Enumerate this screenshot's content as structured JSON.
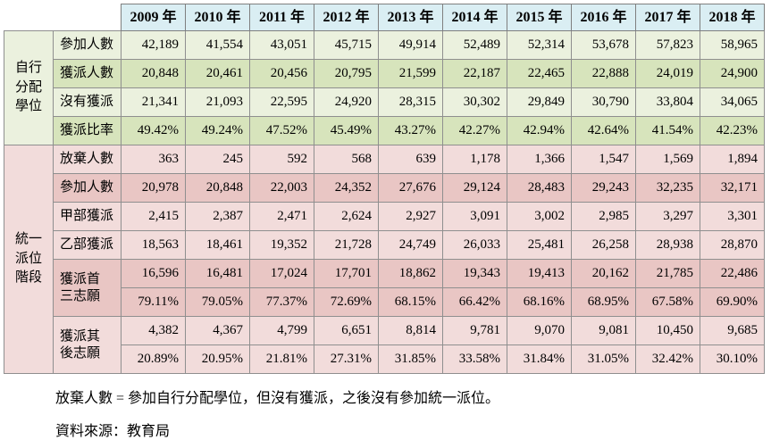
{
  "header": {
    "years": [
      "2009 年",
      "2010 年",
      "2011 年",
      "2012 年",
      "2013 年",
      "2014 年",
      "2015 年",
      "2016 年",
      "2017 年",
      "2018 年"
    ]
  },
  "sections": [
    {
      "group": "自行\n分配\n學位",
      "rows": [
        {
          "label": "參加人數",
          "values": [
            "42,189",
            "41,554",
            "43,051",
            "45,715",
            "49,914",
            "52,489",
            "52,314",
            "53,678",
            "57,823",
            "58,965"
          ]
        },
        {
          "label": "獲派人數",
          "values": [
            "20,848",
            "20,461",
            "20,456",
            "20,795",
            "21,599",
            "22,187",
            "22,465",
            "22,888",
            "24,019",
            "24,900"
          ]
        },
        {
          "label": "沒有獲派",
          "values": [
            "21,341",
            "21,093",
            "22,595",
            "24,920",
            "28,315",
            "30,302",
            "29,849",
            "30,790",
            "33,804",
            "34,065"
          ]
        },
        {
          "label": "獲派比率",
          "values": [
            "49.42%",
            "49.24%",
            "47.52%",
            "45.49%",
            "43.27%",
            "42.27%",
            "42.94%",
            "42.64%",
            "41.54%",
            "42.23%"
          ]
        }
      ]
    },
    {
      "group": "統一\n派位\n階段",
      "rows": [
        {
          "label": "放棄人數",
          "values": [
            "363",
            "245",
            "592",
            "568",
            "639",
            "1,178",
            "1,366",
            "1,547",
            "1,569",
            "1,894"
          ]
        },
        {
          "label": "參加人數",
          "values": [
            "20,978",
            "20,848",
            "22,003",
            "24,352",
            "27,676",
            "29,124",
            "28,483",
            "29,243",
            "32,235",
            "32,171"
          ]
        },
        {
          "label": "甲部獲派",
          "values": [
            "2,415",
            "2,387",
            "2,471",
            "2,624",
            "2,927",
            "3,091",
            "3,002",
            "2,985",
            "3,297",
            "3,301"
          ]
        },
        {
          "label": "乙部獲派",
          "values": [
            "18,563",
            "18,461",
            "19,352",
            "21,728",
            "24,749",
            "26,033",
            "25,481",
            "26,258",
            "28,938",
            "28,870"
          ]
        },
        {
          "label": "獲派首\n三志願",
          "values": [
            "16,596",
            "16,481",
            "17,024",
            "17,701",
            "18,862",
            "19,343",
            "19,413",
            "20,162",
            "21,785",
            "22,486"
          ]
        },
        {
          "label": "",
          "values": [
            "79.11%",
            "79.05%",
            "77.37%",
            "72.69%",
            "68.15%",
            "66.42%",
            "68.16%",
            "68.95%",
            "67.58%",
            "69.90%"
          ]
        },
        {
          "label": "獲派其\n後志願",
          "values": [
            "4,382",
            "4,367",
            "4,799",
            "6,651",
            "8,814",
            "9,781",
            "9,070",
            "9,081",
            "10,450",
            "9,685"
          ]
        },
        {
          "label": "",
          "values": [
            "20.89%",
            "20.95%",
            "21.81%",
            "27.31%",
            "31.85%",
            "33.58%",
            "31.84%",
            "31.05%",
            "32.42%",
            "30.10%"
          ]
        }
      ]
    }
  ],
  "footnotes": [
    "放棄人數 = 參加自行分配學位，但沒有獲派，之後沒有參加統一派位。",
    "資料來源：教育局"
  ]
}
